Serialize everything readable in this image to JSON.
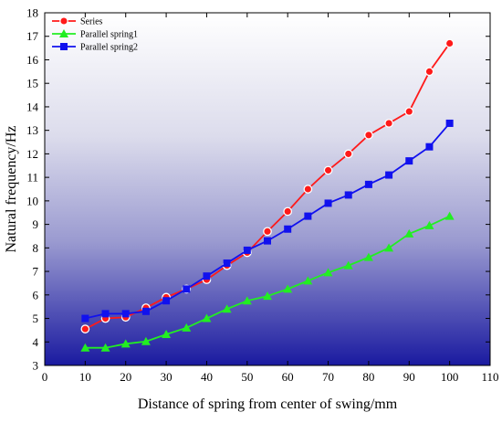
{
  "chart_data": {
    "type": "line",
    "title": "",
    "xlabel": "Distance of spring from center of swing/mm",
    "ylabel": "Natural frequency/Hz",
    "xlim": [
      0,
      110
    ],
    "ylim": [
      3,
      18
    ],
    "xticks": [
      0,
      10,
      20,
      30,
      40,
      50,
      60,
      70,
      80,
      90,
      100,
      110
    ],
    "yticks": [
      3,
      4,
      5,
      6,
      7,
      8,
      9,
      10,
      11,
      12,
      13,
      14,
      15,
      16,
      17,
      18
    ],
    "grid": false,
    "legend_position": "top-left",
    "background": "gradient white to dark blue",
    "series": [
      {
        "name": "Series",
        "color": "#ff1a1a",
        "marker": "circle",
        "x": [
          10,
          15,
          20,
          25,
          30,
          35,
          40,
          45,
          50,
          55,
          60,
          65,
          70,
          75,
          80,
          85,
          90,
          95,
          100
        ],
        "values": [
          4.55,
          5.0,
          5.05,
          5.45,
          5.9,
          6.25,
          6.65,
          7.25,
          7.8,
          8.7,
          9.55,
          10.5,
          11.3,
          12.0,
          12.8,
          13.3,
          13.8,
          15.5,
          16.7
        ]
      },
      {
        "name": "Parallel spring1",
        "color": "#22ee22",
        "marker": "triangle",
        "x": [
          10,
          15,
          20,
          25,
          30,
          35,
          40,
          45,
          50,
          55,
          60,
          65,
          70,
          75,
          80,
          85,
          90,
          95,
          100
        ],
        "values": [
          3.75,
          3.75,
          3.92,
          4.02,
          4.32,
          4.6,
          5.0,
          5.4,
          5.75,
          5.95,
          6.25,
          6.6,
          6.95,
          7.25,
          7.6,
          8.0,
          8.6,
          8.95,
          9.35
        ]
      },
      {
        "name": "Parallel spring2",
        "color": "#1111ee",
        "marker": "square",
        "x": [
          10,
          15,
          20,
          25,
          30,
          35,
          40,
          45,
          50,
          55,
          60,
          65,
          70,
          75,
          80,
          85,
          90,
          95,
          100
        ],
        "values": [
          5.0,
          5.2,
          5.2,
          5.3,
          5.75,
          6.25,
          6.8,
          7.35,
          7.9,
          8.3,
          8.8,
          9.35,
          9.9,
          10.25,
          10.7,
          11.1,
          11.7,
          12.3,
          13.3
        ]
      }
    ]
  }
}
